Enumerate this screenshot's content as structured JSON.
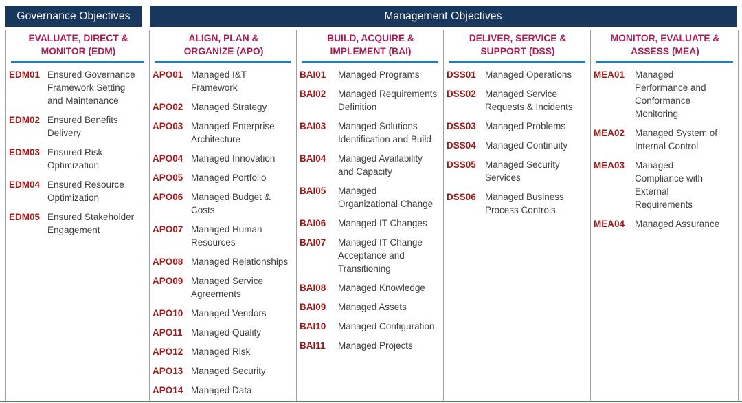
{
  "banners": {
    "governance": "Governance Objectives",
    "management": "Management Objectives"
  },
  "colors": {
    "banner_navy": "#17375D",
    "column_title_crimson": "#A71D55",
    "objective_code_red": "#9E1A1A",
    "body_text_gray": "#3F3F3F",
    "header_underline_blue": "#1B7FC5",
    "divider_gray": "#9E9E9E",
    "bottom_rule_green": "#56805F"
  },
  "columns": [
    {
      "id": "EDM",
      "title": "EVALUATE, DIRECT &\nMONITOR (EDM)",
      "items": [
        {
          "code": "EDM01",
          "label": "Ensured Governance\nFramework Setting\nand Maintenance"
        },
        {
          "code": "EDM02",
          "label": "Ensured Benefits\nDelivery"
        },
        {
          "code": "EDM03",
          "label": "Ensured Risk\nOptimization"
        },
        {
          "code": "EDM04",
          "label": "Ensured Resource\nOptimization"
        },
        {
          "code": "EDM05",
          "label": "Ensured Stakeholder\nEngagement"
        }
      ]
    },
    {
      "id": "APO",
      "title": "ALIGN, PLAN &\nORGANIZE (APO)",
      "items": [
        {
          "code": "APO01",
          "label": "Managed I&T\nFramework"
        },
        {
          "code": "APO02",
          "label": "Managed Strategy"
        },
        {
          "code": "APO03",
          "label": "Managed Enterprise\nArchitecture"
        },
        {
          "code": "APO04",
          "label": "Managed Innovation"
        },
        {
          "code": "APO05",
          "label": "Managed Portfolio"
        },
        {
          "code": "APO06",
          "label": "Managed Budget &\nCosts"
        },
        {
          "code": "APO07",
          "label": "Managed Human\nResources"
        },
        {
          "code": "APO08",
          "label": "Managed Relationships"
        },
        {
          "code": "APO09",
          "label": "Managed Service\nAgreements"
        },
        {
          "code": "APO10",
          "label": "Managed Vendors"
        },
        {
          "code": "APO11",
          "label": "Managed Quality"
        },
        {
          "code": "APO12",
          "label": "Managed Risk"
        },
        {
          "code": "APO13",
          "label": "Managed Security"
        },
        {
          "code": "APO14",
          "label": "Managed Data"
        }
      ]
    },
    {
      "id": "BAI",
      "title": "BUILD, ACQUIRE &\nIMPLEMENT (BAI)",
      "items": [
        {
          "code": "BAI01",
          "label": "Managed Programs"
        },
        {
          "code": "BAI02",
          "label": "Managed Requirements\nDefinition"
        },
        {
          "code": "BAI03",
          "label": "Managed Solutions\nIdentification and Build"
        },
        {
          "code": "BAI04",
          "label": "Managed Availability\nand Capacity"
        },
        {
          "code": "BAI05",
          "label": "Managed\nOrganizational Change"
        },
        {
          "code": "BAI06",
          "label": "Managed IT Changes"
        },
        {
          "code": "BAI07",
          "label": "Managed IT Change\nAcceptance and\nTransitioning"
        },
        {
          "code": "BAI08",
          "label": "Managed Knowledge"
        },
        {
          "code": "BAI09",
          "label": "Managed Assets"
        },
        {
          "code": "BAI10",
          "label": "Managed Configuration"
        },
        {
          "code": "BAI11",
          "label": "Managed Projects"
        }
      ]
    },
    {
      "id": "DSS",
      "title": "DELIVER, SERVICE &\nSUPPORT (DSS)",
      "items": [
        {
          "code": "DSS01",
          "label": "Managed Operations"
        },
        {
          "code": "DSS02",
          "label": "Managed Service\nRequests & Incidents"
        },
        {
          "code": "DSS03",
          "label": "Managed Problems"
        },
        {
          "code": "DSS04",
          "label": "Managed Continuity"
        },
        {
          "code": "DSS05",
          "label": "Managed Security\nServices"
        },
        {
          "code": "DSS06",
          "label": "Managed Business\nProcess Controls"
        }
      ]
    },
    {
      "id": "MEA",
      "title": "MONITOR, EVALUATE &\nASSESS (MEA)",
      "items": [
        {
          "code": "MEA01",
          "label": "Managed\nPerformance and\nConformance\nMonitoring"
        },
        {
          "code": "MEA02",
          "label": "Managed System of\nInternal Control"
        },
        {
          "code": "MEA03",
          "label": "Managed\nCompliance with\nExternal\nRequirements"
        },
        {
          "code": "MEA04",
          "label": "Managed Assurance"
        }
      ]
    }
  ]
}
